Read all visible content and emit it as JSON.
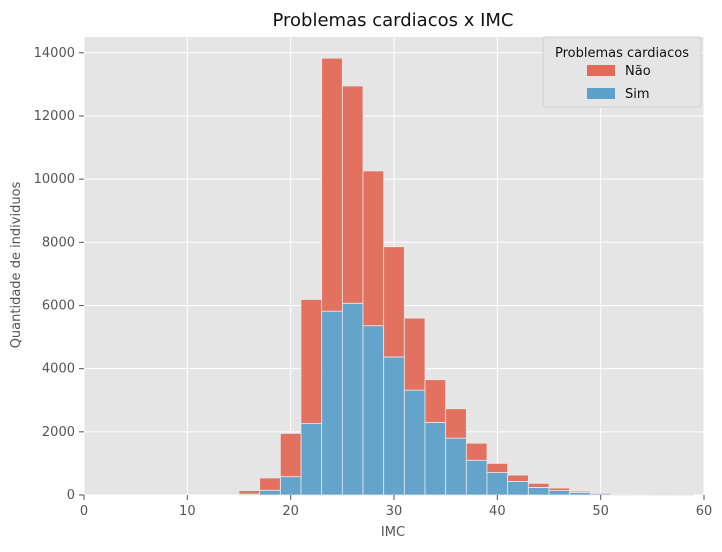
{
  "chart_data": {
    "type": "bar",
    "subtype": "stacked-histogram",
    "title": "Problemas cardiacos x IMC",
    "xlabel": "IMC",
    "ylabel": "Quantidade de individuos",
    "xlim": [
      0,
      60
    ],
    "ylim": [
      0,
      14500
    ],
    "xticks": [
      0,
      10,
      20,
      30,
      40,
      50,
      60
    ],
    "yticks": [
      0,
      2000,
      4000,
      6000,
      8000,
      10000,
      12000,
      14000
    ],
    "grid": true,
    "legend": {
      "title": "Problemas cardiacos",
      "placement": "top-right"
    },
    "bin_edges": [
      15,
      17,
      19,
      21,
      23,
      25,
      27,
      29,
      31,
      33,
      35,
      37,
      39,
      41,
      43,
      45,
      47,
      49,
      51,
      53,
      55,
      57,
      59
    ],
    "series": [
      {
        "name": "Sim",
        "color": "#5DA0C9",
        "values": [
          30,
          150,
          580,
          2260,
          5820,
          6070,
          5360,
          4370,
          3320,
          2300,
          1800,
          1100,
          710,
          430,
          240,
          140,
          80,
          40,
          20,
          10,
          5,
          2
        ]
      },
      {
        "name": "Não",
        "color": "#E16A58",
        "values": [
          110,
          390,
          1370,
          3930,
          8010,
          6880,
          4900,
          3490,
          2280,
          1350,
          930,
          540,
          290,
          200,
          130,
          80,
          40,
          30,
          20,
          10,
          10,
          5
        ]
      }
    ]
  },
  "colors": {
    "background": "#E5E5E5",
    "grid": "#FFFFFF",
    "bar_edge": "#E8E8E8",
    "text": "#555555"
  }
}
